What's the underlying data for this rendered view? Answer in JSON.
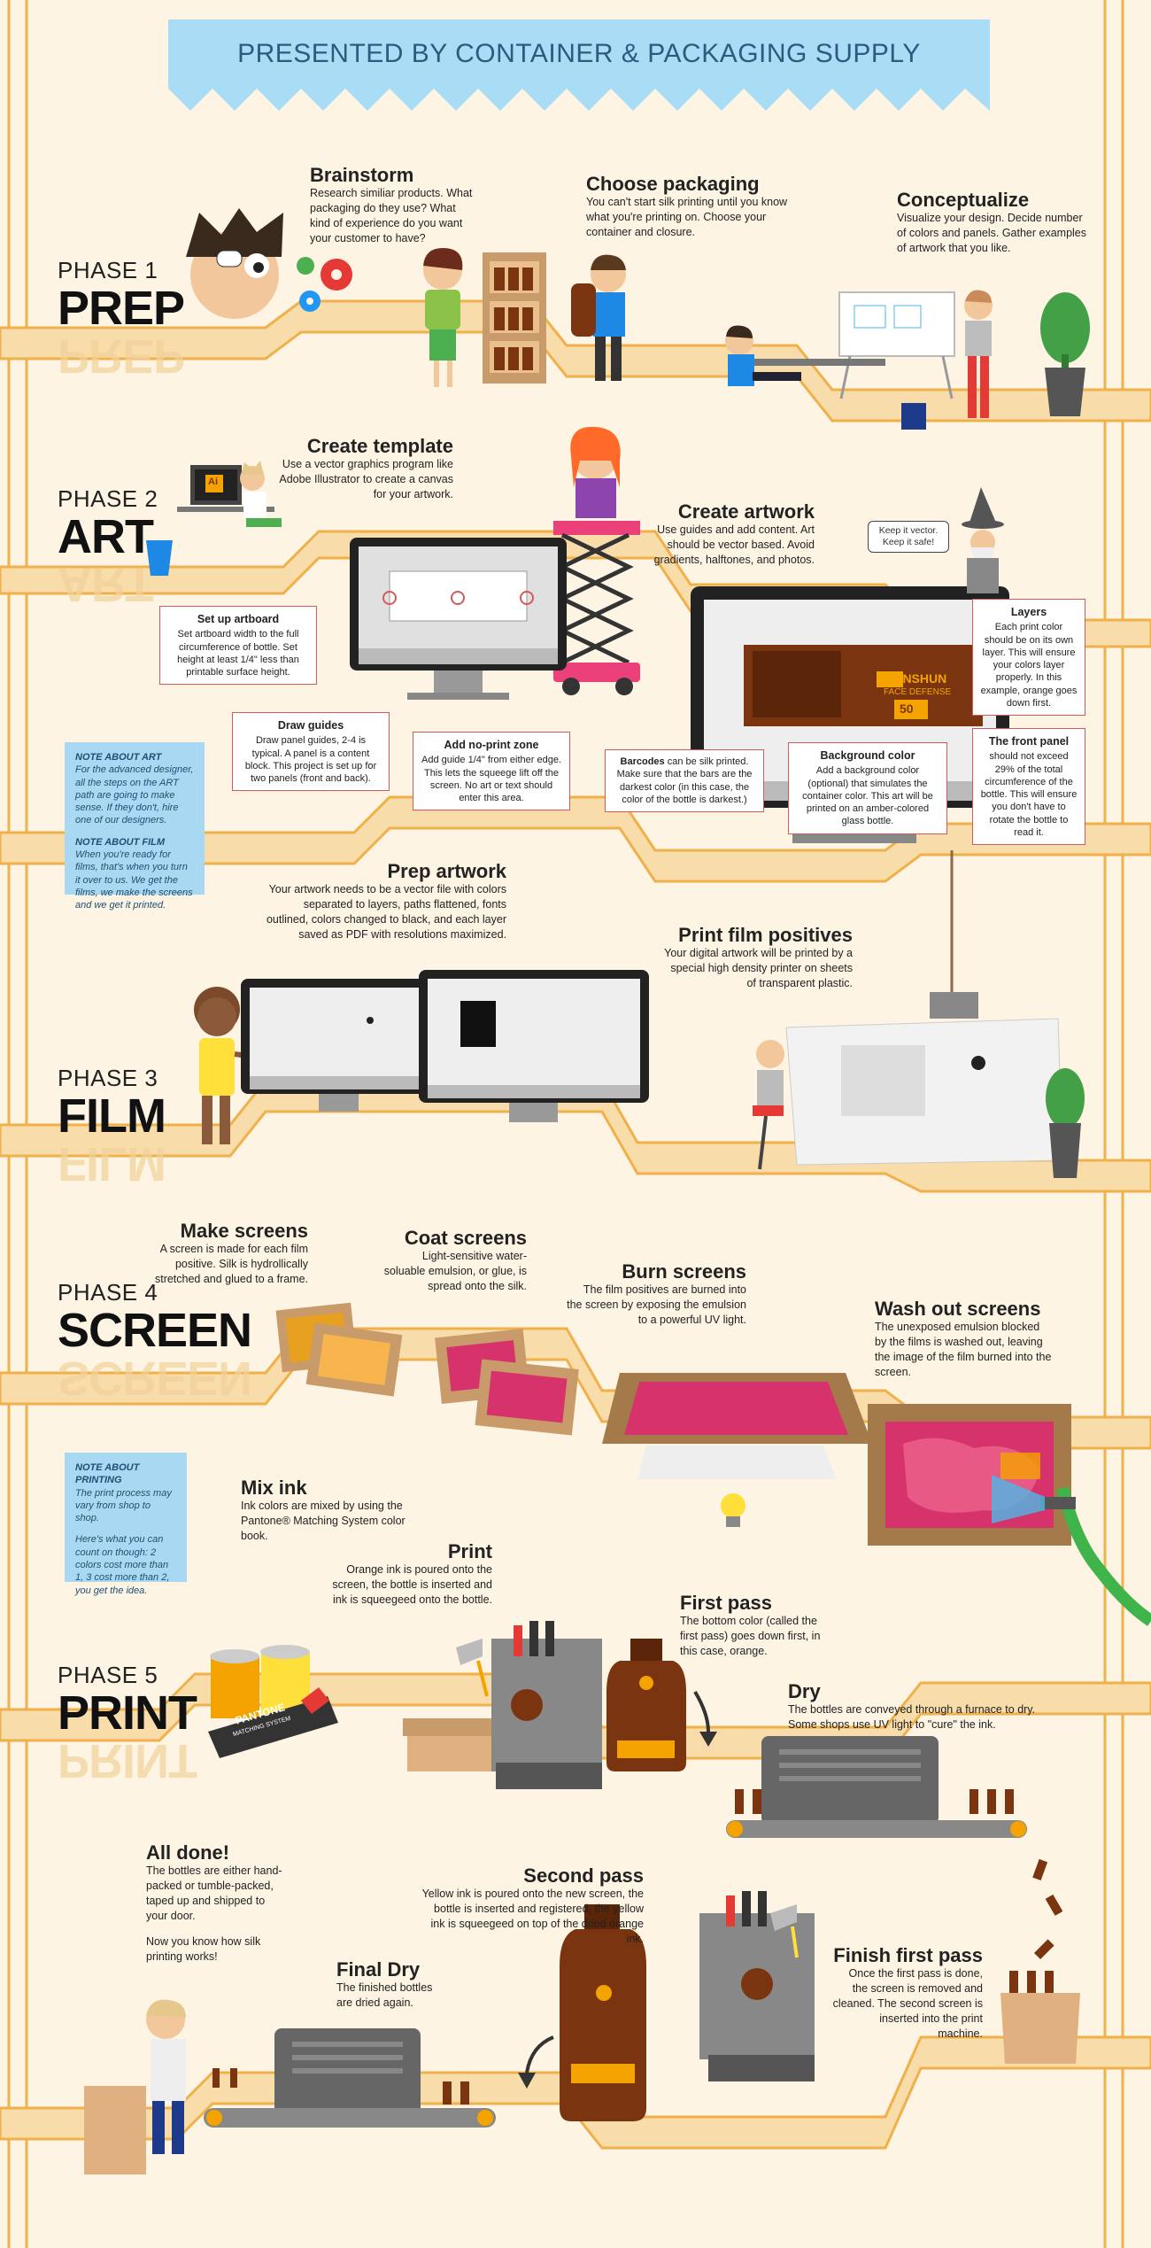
{
  "header": {
    "title": "PRESENTED BY CONTAINER & PACKAGING SUPPLY"
  },
  "phases": [
    {
      "label": "PHASE 1",
      "name": "PREP"
    },
    {
      "label": "PHASE 2",
      "name": "ART"
    },
    {
      "label": "PHASE 3",
      "name": "FILM"
    },
    {
      "label": "PHASE 4",
      "name": "SCREEN"
    },
    {
      "label": "PHASE 5",
      "name": "PRINT"
    }
  ],
  "steps": {
    "brainstorm": {
      "title": "Brainstorm",
      "body": "Research similiar products. What packaging do they use? What kind of experience do you want your customer to have?"
    },
    "choose_packaging": {
      "title": "Choose packaging",
      "body": "You can't start silk printing until you know what you're printing on. Choose your container and closure."
    },
    "conceptualize": {
      "title": "Conceptualize",
      "body": "Visualize your design. Decide number of colors and panels. Gather examples of artwork that you like."
    },
    "create_template": {
      "title": "Create template",
      "body": "Use a vector graphics program like Adobe Illustrator to create a canvas for your artwork."
    },
    "create_artwork": {
      "title": "Create artwork",
      "body": "Use guides and add content. Art should be vector based. Avoid gradients, halftones, and photos."
    },
    "prep_artwork": {
      "title": "Prep artwork",
      "body": "Your artwork needs to be a vector file with colors separated to layers, paths flattened, fonts outlined, colors changed to black, and each layer saved as PDF with resolutions maximized."
    },
    "print_film": {
      "title": "Print film positives",
      "body": "Your digital artwork will be printed by a special high density printer on sheets of transparent plastic."
    },
    "make_screens": {
      "title": "Make screens",
      "body": "A screen is made for each film positive. Silk is hydrollically stretched and glued to a frame."
    },
    "coat_screens": {
      "title": "Coat screens",
      "body": "Light-sensitive water-soluable emulsion, or glue, is spread onto the silk."
    },
    "burn_screens": {
      "title": "Burn screens",
      "body": "The film positives are burned into the screen by exposing the emulsion to a powerful UV light."
    },
    "wash_out": {
      "title": "Wash out screens",
      "body": "The unexposed emulsion blocked by the films is washed out, leaving the image of the film burned into the screen."
    },
    "mix_ink": {
      "title": "Mix ink",
      "body": "Ink colors are mixed by using the Pantone® Matching System color book."
    },
    "print": {
      "title": "Print",
      "body": "Orange ink is poured onto the screen, the bottle is inserted and ink is squeegeed onto the bottle."
    },
    "first_pass": {
      "title": "First pass",
      "body": "The bottom color (called the first pass) goes down first, in this case, orange."
    },
    "dry": {
      "title": "Dry",
      "body": "The bottles are conveyed through a furnace to dry. Some shops use UV light to \"cure\" the ink."
    },
    "all_done": {
      "title": "All done!",
      "body": "The bottles are either hand-packed or tumble-packed, taped up and shipped to your door.",
      "body2": "Now you know how silk printing works!"
    },
    "second_pass": {
      "title": "Second pass",
      "body": "Yellow ink is poured onto the new screen, the bottle is inserted and registered, the yellow ink is squeegeed on top of the dried orange ink."
    },
    "final_dry": {
      "title": "Final Dry",
      "body": "The finished bottles are dried again."
    },
    "finish_first": {
      "title": "Finish first pass",
      "body": "Once the first pass is done, the screen is removed and cleaned. The second screen is inserted into the print machine."
    }
  },
  "callouts": {
    "artboard": {
      "title": "Set up artboard",
      "body": "Set artboard width to the full circumference of bottle. Set height at least 1/4\" less than printable surface height."
    },
    "guides": {
      "title": "Draw guides",
      "body": "Draw panel guides, 2-4 is typical. A panel is a content block. This project is set up for two panels (front and back)."
    },
    "noprint": {
      "title": "Add no-print zone",
      "body": "Add guide 1/4\" from either edge. This lets the squeege lift off the screen. No art or text should enter this area."
    },
    "barcodes": {
      "title": "Barcodes",
      "body": "can be silk printed. Make sure that the bars are the darkest color (in this case, the color of the bottle is darkest.)"
    },
    "background": {
      "title": "Background color",
      "body": "Add a background color (optional) that simulates the container color. This art will be printed on an amber-colored glass bottle."
    },
    "layers": {
      "title": "Layers",
      "body": "Each print color should be on its own layer. This will ensure your colors layer properly. In this example, orange goes down first."
    },
    "front_panel": {
      "title": "The front panel",
      "body": "should not exceed 29% of the total circumference of the bottle. This will ensure you don't have to rotate the bottle to read it."
    }
  },
  "notes": {
    "art": {
      "title": "NOTE ABOUT ART",
      "p1": "For the advanced designer, all the steps on the ART path are going to make sense. If they don't, hire one of our designers.",
      "title2": "NOTE ABOUT FILM",
      "p2": "When you're ready for films, that's when you turn it over to us. We get the films, we make the screens and we get it printed."
    },
    "printing": {
      "title": "NOTE ABOUT PRINTING",
      "p1": "The print process may vary from shop to shop.",
      "p2": "Here's what you can count on though: 2 colors cost more than 1, 3 cost more than 2, you get the idea."
    }
  },
  "bubble": {
    "text": "Keep it vector. Keep it safe!"
  },
  "product": {
    "brand": "SUNSHUN",
    "sub": "FACE DEFENSE",
    "spf": "50"
  },
  "labels": {
    "ai": "Ai",
    "pantone": "PANTONE",
    "pantone_sub": "MATCHING SYSTEM"
  },
  "colors": {
    "background": "#fdf4e4",
    "path": "#f8dcaa",
    "path_edge": "#f0b04a",
    "accent_red": "#d45a5a",
    "amber": "#7a3510",
    "note_blue": "#a9d9f2"
  }
}
